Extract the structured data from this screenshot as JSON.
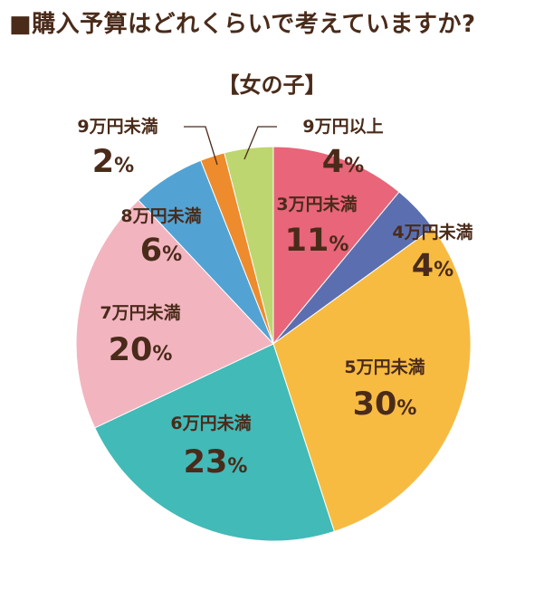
{
  "title": "■購入予算はどれくらいで考えていますか?",
  "subtitle": "【女の子】",
  "chart_data": {
    "type": "pie",
    "title": "■購入予算はどれくらいで考えていますか?",
    "subtitle": "【女の子】",
    "start": "12 o'clock, clockwise",
    "slices": [
      {
        "label": "3万円未満",
        "value": 11,
        "display": "11%",
        "color": "#e8657a"
      },
      {
        "label": "4万円未満",
        "value": 4,
        "display": "4%",
        "color": "#5b6fb0"
      },
      {
        "label": "5万円未満",
        "value": 30,
        "display": "30%",
        "color": "#f7bb42"
      },
      {
        "label": "6万円未満",
        "value": 23,
        "display": "23%",
        "color": "#42bab8"
      },
      {
        "label": "7万円未満",
        "value": 20,
        "display": "20%",
        "color": "#f2b5c0"
      },
      {
        "label": "8万円未満",
        "value": 6,
        "display": "6%",
        "color": "#52a3d4"
      },
      {
        "label": "9万円未満",
        "value": 2,
        "display": "2%",
        "color": "#ee8b2c"
      },
      {
        "label": "9万円以上",
        "value": 4,
        "display": "4%",
        "color": "#bdd670"
      }
    ]
  }
}
